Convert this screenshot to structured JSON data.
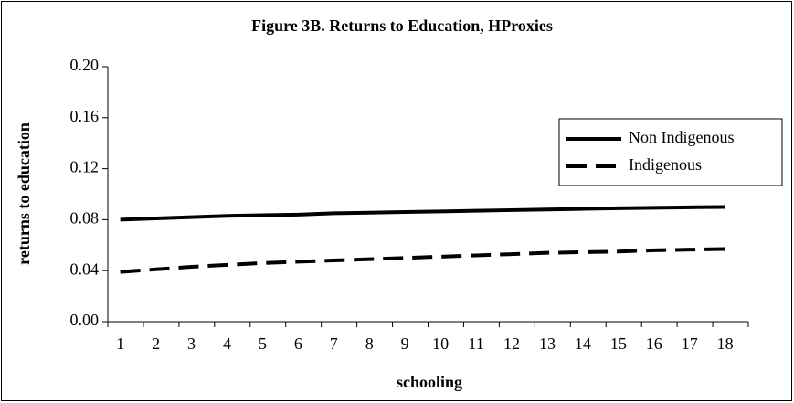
{
  "chart_data": {
    "type": "line",
    "title": "Figure 3B. Returns to Education, HProxies",
    "x_label": "schooling",
    "y_label": "returns to education",
    "categories": [
      1,
      2,
      3,
      4,
      5,
      6,
      7,
      8,
      9,
      10,
      11,
      12,
      13,
      14,
      15,
      16,
      17,
      18
    ],
    "series": [
      {
        "name": "Non Indigenous",
        "color": "#000000",
        "dashed": false,
        "values": [
          0.08,
          0.081,
          0.082,
          0.083,
          0.0835,
          0.084,
          0.085,
          0.0855,
          0.086,
          0.0865,
          0.087,
          0.0875,
          0.088,
          0.0885,
          0.089,
          0.0893,
          0.0897,
          0.09
        ]
      },
      {
        "name": "Indigenous",
        "color": "#000000",
        "dashed": true,
        "values": [
          0.039,
          0.041,
          0.043,
          0.0445,
          0.046,
          0.047,
          0.048,
          0.049,
          0.05,
          0.051,
          0.052,
          0.053,
          0.054,
          0.0545,
          0.055,
          0.056,
          0.0565,
          0.057
        ]
      }
    ],
    "ylim": [
      0,
      0.2
    ],
    "yticks": [
      {
        "value": 0,
        "label": "0.00"
      },
      {
        "value": 0.04,
        "label": "0.04"
      },
      {
        "value": 0.08,
        "label": "0.08"
      },
      {
        "value": 0.12,
        "label": "0.12"
      },
      {
        "value": 0.16,
        "label": "0.16"
      },
      {
        "value": 0.2,
        "label": "0.20"
      }
    ],
    "grid": false,
    "legend": "right"
  }
}
